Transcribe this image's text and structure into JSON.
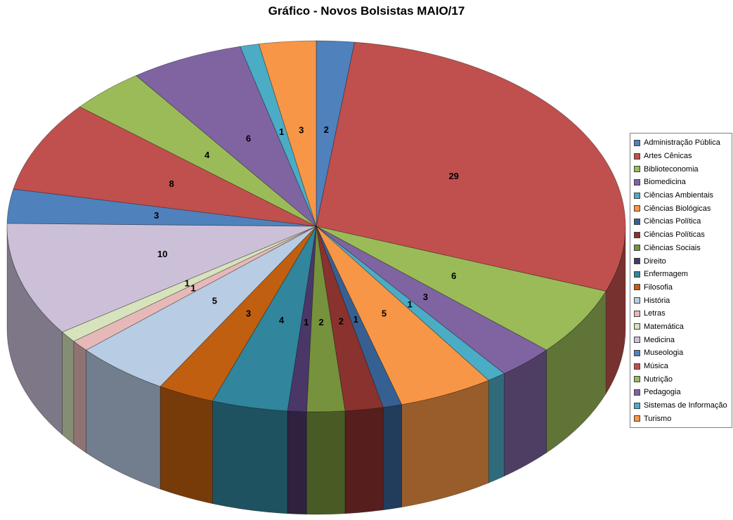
{
  "chart_data": {
    "type": "pie",
    "style": "3d",
    "title": "Gráfico - Novos Bolsistas MAIO/17",
    "start_angle_deg": -90,
    "direction": "clockwise",
    "total": 101,
    "legend_position": "right",
    "data_labels": "values",
    "background_color": "#FFFFFF",
    "categories": [
      "Administração Pública",
      "Artes Cênicas",
      "Biblioteconomia",
      "Biomedicina",
      "Ciências Ambientais",
      "Ciências Biológicas",
      "Ciências Política",
      "Ciências Políticas",
      "Ciências Sociais",
      "Direito",
      "Enfermagem",
      "Filosofia",
      "História",
      "Letras",
      "Matemática",
      "Medicina",
      "Museologia",
      "Música",
      "Nutrição",
      "Pedagogia",
      "Sistemas de Informação",
      "Turismo"
    ],
    "values": [
      2,
      29,
      6,
      3,
      1,
      5,
      1,
      2,
      2,
      1,
      4,
      3,
      5,
      1,
      1,
      10,
      3,
      8,
      4,
      6,
      1,
      3
    ],
    "colors": [
      "#4F81BD",
      "#C0504D",
      "#9BBB59",
      "#8064A2",
      "#4BACC6",
      "#F79646",
      "#376092",
      "#8A322E",
      "#76923C",
      "#4A3768",
      "#31859C",
      "#C05F10",
      "#B8CCE4",
      "#E6B9B8",
      "#D6E3BC",
      "#CCC0D9",
      "#4F81BD",
      "#C0504D",
      "#9BBB59",
      "#8064A2",
      "#4BACC6",
      "#F79646"
    ]
  }
}
